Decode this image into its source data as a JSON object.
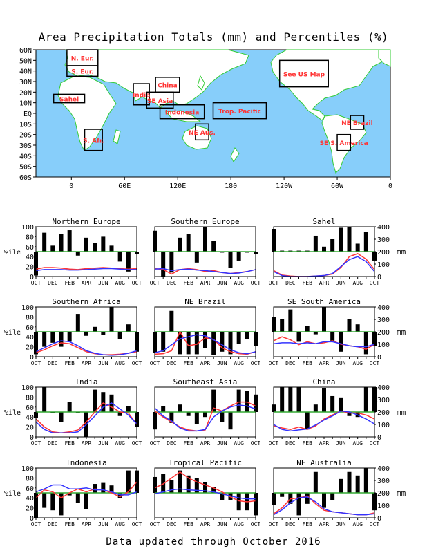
{
  "title": "Area Precipitation Totals (mm) and Percentiles (%)",
  "footer": "Data updated through October 2016",
  "colors": {
    "ocean": "#87cefa",
    "land": "#ffffff",
    "coast": "#33cc33",
    "box": "#000000",
    "region_label": "#ff3333",
    "bars": "#000000",
    "percentile_line": "#ff3333",
    "mm_line": "#3333ff",
    "median_line": "#33aa33"
  },
  "map": {
    "lat_labels": [
      "60N",
      "50N",
      "40N",
      "30N",
      "20N",
      "10N",
      "EQ",
      "10S",
      "20S",
      "30S",
      "40S",
      "50S",
      "60S"
    ],
    "lon_labels": [
      "0",
      "60E",
      "120E",
      "180",
      "120W",
      "60W",
      "0"
    ],
    "regions": [
      {
        "label": "N. Eur.",
        "lon": [
          -5,
          30
        ],
        "lat": [
          45,
          60
        ]
      },
      {
        "label": "S. Eur.",
        "lon": [
          -5,
          30
        ],
        "lat": [
          35,
          45
        ]
      },
      {
        "label": "Sahel",
        "lon": [
          -20,
          15
        ],
        "lat": [
          10,
          18
        ]
      },
      {
        "label": "India",
        "lon": [
          70,
          88
        ],
        "lat": [
          8,
          28
        ]
      },
      {
        "label": "China",
        "lon": [
          95,
          122
        ],
        "lat": [
          20,
          34
        ]
      },
      {
        "label": "SE Asia",
        "lon": [
          85,
          115
        ],
        "lat": [
          5,
          20
        ]
      },
      {
        "label": "Indonesia",
        "lon": [
          100,
          150
        ],
        "lat": [
          -5,
          8
        ]
      },
      {
        "label": "Trop. Pacific",
        "lon": [
          160,
          220
        ],
        "lat": [
          -5,
          10
        ]
      },
      {
        "label": "NE Aus.",
        "lon": [
          140,
          155
        ],
        "lat": [
          -25,
          -10
        ]
      },
      {
        "label": "See US Map",
        "lon": [
          235,
          290
        ],
        "lat": [
          25,
          50
        ]
      },
      {
        "label": "NE Brazil",
        "lon": [
          315,
          330
        ],
        "lat": [
          -15,
          -2
        ]
      },
      {
        "label": "SE S. America",
        "lon": [
          300,
          315
        ],
        "lat": [
          -35,
          -20
        ]
      },
      {
        "label": "S. Afr.",
        "lon": [
          15,
          35
        ],
        "lat": [
          -35,
          -15
        ]
      }
    ]
  },
  "chart_data": [
    {
      "type": "bar",
      "title": "Northern Europe",
      "months": [
        "OCT",
        "NOV",
        "DEC",
        "JAN",
        "FEB",
        "MAR",
        "APR",
        "MAY",
        "JUN",
        "JUL",
        "AUG",
        "SEP",
        "OCT"
      ],
      "month_ticks": [
        "OCT",
        "DEC",
        "FEB",
        "APR",
        "JUN",
        "AUG",
        "OCT"
      ],
      "ylabel": "%ile",
      "ylim": [
        0,
        100
      ],
      "y2lim": [
        0,
        400
      ],
      "bars_percentile": [
        2,
        88,
        62,
        85,
        93,
        42,
        78,
        68,
        80,
        62,
        30,
        10,
        45
      ],
      "series": [
        {
          "values": [
            15,
            18,
            18,
            17,
            15,
            14,
            16,
            17,
            18,
            17,
            16,
            15,
            16
          ]
        },
        {
          "values": [
            12,
            14,
            14,
            14,
            13,
            13,
            14,
            15,
            16,
            16,
            15,
            14,
            14
          ]
        }
      ]
    },
    {
      "type": "bar",
      "title": "Southern Europe",
      "months": [
        "OCT",
        "NOV",
        "DEC",
        "JAN",
        "FEB",
        "MAR",
        "APR",
        "MAY",
        "JUN",
        "JUL",
        "AUG",
        "SEP",
        "OCT"
      ],
      "month_ticks": [
        "OCT",
        "DEC",
        "FEB",
        "APR",
        "JUN",
        "AUG",
        "OCT"
      ],
      "ylabel": "%ile",
      "ylim": [
        0,
        100
      ],
      "y2lim": [
        0,
        400
      ],
      "bars_percentile": [
        92,
        0,
        8,
        78,
        85,
        28,
        100,
        72,
        48,
        18,
        32,
        48,
        45
      ],
      "series": [
        {
          "values": [
            16,
            14,
            5,
            14,
            16,
            14,
            10,
            12,
            8,
            6,
            8,
            10,
            14
          ]
        },
        {
          "values": [
            15,
            16,
            12,
            14,
            15,
            13,
            12,
            10,
            8,
            6,
            7,
            10,
            14
          ]
        }
      ]
    },
    {
      "type": "bar",
      "title": "Sahel",
      "months": [
        "OCT",
        "NOV",
        "DEC",
        "JAN",
        "FEB",
        "MAR",
        "APR",
        "MAY",
        "JUN",
        "JUL",
        "AUG",
        "SEP",
        "OCT"
      ],
      "month_ticks": [
        "OCT",
        "DEC",
        "FEB",
        "APR",
        "JUN",
        "AUG",
        "OCT"
      ],
      "ylabel": "",
      "ylim": [
        0,
        100
      ],
      "y2lim": [
        0,
        400
      ],
      "y2label": "mm",
      "bars_percentile": [
        95,
        52,
        52,
        52,
        52,
        82,
        60,
        75,
        98,
        100,
        66,
        90,
        32
      ],
      "series": [
        {
          "values": [
            12,
            3,
            1,
            0,
            0,
            1,
            2,
            5,
            18,
            40,
            46,
            35,
            14
          ]
        },
        {
          "values": [
            10,
            2,
            0,
            0,
            0,
            1,
            2,
            6,
            20,
            34,
            40,
            30,
            10
          ]
        }
      ]
    },
    {
      "type": "bar",
      "title": "Southern Africa",
      "months": [
        "OCT",
        "NOV",
        "DEC",
        "JAN",
        "FEB",
        "MAR",
        "APR",
        "MAY",
        "JUN",
        "JUL",
        "AUG",
        "SEP",
        "OCT"
      ],
      "month_ticks": [
        "OCT",
        "DEC",
        "FEB",
        "APR",
        "JUN",
        "AUG",
        "OCT"
      ],
      "ylabel": "%ile",
      "ylim": [
        0,
        100
      ],
      "y2lim": [
        0,
        400
      ],
      "bars_percentile": [
        5,
        20,
        28,
        20,
        30,
        86,
        42,
        60,
        44,
        100,
        35,
        65,
        10
      ],
      "series": [
        {
          "values": [
            8,
            14,
            22,
            28,
            26,
            18,
            10,
            6,
            4,
            4,
            5,
            7,
            10
          ]
        },
        {
          "values": [
            10,
            18,
            26,
            32,
            30,
            22,
            12,
            7,
            4,
            3,
            4,
            7,
            12
          ]
        }
      ]
    },
    {
      "type": "bar",
      "title": "NE Brazil",
      "months": [
        "OCT",
        "NOV",
        "DEC",
        "JAN",
        "FEB",
        "MAR",
        "APR",
        "MAY",
        "JUN",
        "JUL",
        "AUG",
        "SEP",
        "OCT"
      ],
      "month_ticks": [
        "OCT",
        "DEC",
        "FEB",
        "APR",
        "JUN",
        "AUG",
        "OCT"
      ],
      "ylabel": "",
      "ylim": [
        0,
        100
      ],
      "y2lim": [
        0,
        400
      ],
      "bars_percentile": [
        8,
        10,
        92,
        5,
        5,
        5,
        18,
        3,
        10,
        5,
        25,
        35,
        22
      ],
      "series": [
        {
          "values": [
            5,
            6,
            12,
            50,
            22,
            25,
            38,
            35,
            18,
            10,
            6,
            5,
            10
          ]
        },
        {
          "values": [
            8,
            12,
            24,
            36,
            40,
            44,
            42,
            34,
            24,
            14,
            8,
            6,
            10
          ]
        }
      ]
    },
    {
      "type": "bar",
      "title": "SE South America",
      "months": [
        "OCT",
        "NOV",
        "DEC",
        "JAN",
        "FEB",
        "MAR",
        "APR",
        "MAY",
        "JUN",
        "JUL",
        "AUG",
        "SEP",
        "OCT"
      ],
      "month_ticks": [
        "OCT",
        "DEC",
        "FEB",
        "APR",
        "JUN",
        "AUG",
        "OCT"
      ],
      "ylabel": "",
      "ylim": [
        0,
        100
      ],
      "y2lim": [
        0,
        400
      ],
      "y2label": "mm",
      "bars_percentile": [
        80,
        75,
        95,
        30,
        62,
        45,
        100,
        32,
        10,
        75,
        65,
        5,
        22
      ],
      "series": [
        {
          "values": [
            32,
            40,
            34,
            24,
            30,
            26,
            28,
            32,
            25,
            22,
            20,
            15,
            25
          ]
        },
        {
          "values": [
            26,
            28,
            28,
            26,
            28,
            26,
            30,
            30,
            26,
            22,
            20,
            20,
            25
          ]
        }
      ]
    },
    {
      "type": "bar",
      "title": "India",
      "months": [
        "OCT",
        "NOV",
        "DEC",
        "JAN",
        "FEB",
        "MAR",
        "APR",
        "MAY",
        "JUN",
        "JUL",
        "AUG",
        "SEP",
        "OCT"
      ],
      "month_ticks": [
        "OCT",
        "DEC",
        "FEB",
        "APR",
        "JUN",
        "AUG",
        "OCT"
      ],
      "ylabel": "%ile",
      "ylim": [
        0,
        100
      ],
      "y2lim": [
        0,
        400
      ],
      "bars_percentile": [
        38,
        100,
        50,
        30,
        70,
        50,
        0,
        95,
        90,
        85,
        42,
        62,
        20
      ],
      "series": [
        {
          "values": [
            36,
            20,
            10,
            8,
            10,
            14,
            30,
            50,
            68,
            60,
            50,
            48,
            25
          ]
        },
        {
          "values": [
            30,
            15,
            8,
            8,
            8,
            10,
            25,
            42,
            60,
            68,
            56,
            44,
            26
          ]
        }
      ]
    },
    {
      "type": "bar",
      "title": "Southeast Asia",
      "months": [
        "OCT",
        "NOV",
        "DEC",
        "JAN",
        "FEB",
        "MAR",
        "APR",
        "MAY",
        "JUN",
        "JUL",
        "AUG",
        "SEP",
        "OCT"
      ],
      "month_ticks": [
        "OCT",
        "DEC",
        "FEB",
        "APR",
        "JUN",
        "AUG",
        "OCT"
      ],
      "ylabel": "",
      "ylim": [
        0,
        100
      ],
      "y2lim": [
        0,
        400
      ],
      "bars_percentile": [
        15,
        62,
        28,
        65,
        42,
        25,
        40,
        95,
        30,
        15,
        95,
        92,
        85
      ],
      "series": [
        {
          "values": [
            52,
            40,
            30,
            20,
            14,
            12,
            14,
            58,
            52,
            62,
            70,
            70,
            62
          ]
        },
        {
          "values": [
            58,
            42,
            32,
            18,
            12,
            12,
            15,
            40,
            52,
            60,
            64,
            62,
            56
          ]
        }
      ]
    },
    {
      "type": "bar",
      "title": "China",
      "months": [
        "OCT",
        "NOV",
        "DEC",
        "JAN",
        "FEB",
        "MAR",
        "APR",
        "MAY",
        "JUN",
        "JUL",
        "AUG",
        "SEP",
        "OCT"
      ],
      "month_ticks": [
        "OCT",
        "DEC",
        "FEB",
        "APR",
        "JUN",
        "AUG",
        "OCT"
      ],
      "ylabel": "",
      "ylim": [
        0,
        100
      ],
      "y2lim": [
        0,
        400
      ],
      "y2label": "mm",
      "bars_percentile": [
        65,
        100,
        100,
        100,
        15,
        65,
        98,
        82,
        78,
        42,
        40,
        100,
        100
      ],
      "series": [
        {
          "values": [
            22,
            18,
            15,
            20,
            15,
            22,
            36,
            44,
            52,
            48,
            48,
            44,
            36
          ]
        },
        {
          "values": [
            25,
            15,
            12,
            14,
            16,
            24,
            34,
            42,
            52,
            50,
            44,
            36,
            26
          ]
        }
      ]
    },
    {
      "type": "bar",
      "title": "Indonesia",
      "months": [
        "OCT",
        "NOV",
        "DEC",
        "JAN",
        "FEB",
        "MAR",
        "APR",
        "MAY",
        "JUN",
        "JUL",
        "AUG",
        "SEP",
        "OCT"
      ],
      "month_ticks": [
        "OCT",
        "DEC",
        "FEB",
        "APR",
        "JUN",
        "AUG",
        "OCT"
      ],
      "ylabel": "%ile",
      "ylim": [
        0,
        100
      ],
      "y2lim": [
        0,
        400
      ],
      "bars_percentile": [
        0,
        20,
        15,
        5,
        45,
        30,
        18,
        68,
        70,
        65,
        40,
        95,
        95
      ],
      "series": [
        {
          "values": [
            40,
            56,
            52,
            40,
            50,
            58,
            52,
            58,
            56,
            50,
            42,
            52,
            72
          ]
        },
        {
          "values": [
            52,
            58,
            66,
            66,
            58,
            58,
            60,
            56,
            56,
            52,
            46,
            46,
            52
          ]
        }
      ]
    },
    {
      "type": "bar",
      "title": "Tropical Pacific",
      "months": [
        "OCT",
        "NOV",
        "DEC",
        "JAN",
        "FEB",
        "MAR",
        "APR",
        "MAY",
        "JUN",
        "JUL",
        "AUG",
        "SEP",
        "OCT"
      ],
      "month_ticks": [
        "OCT",
        "DEC",
        "FEB",
        "APR",
        "JUN",
        "AUG",
        "OCT"
      ],
      "ylabel": "",
      "ylim": [
        0,
        100
      ],
      "y2lim": [
        0,
        400
      ],
      "bars_percentile": [
        82,
        88,
        75,
        95,
        85,
        80,
        72,
        62,
        35,
        35,
        15,
        15,
        5
      ],
      "series": [
        {
          "values": [
            60,
            68,
            80,
            92,
            80,
            72,
            66,
            60,
            52,
            42,
            34,
            32,
            34
          ]
        },
        {
          "values": [
            48,
            52,
            56,
            58,
            56,
            55,
            54,
            52,
            48,
            44,
            40,
            38,
            38
          ]
        }
      ]
    },
    {
      "type": "bar",
      "title": "NE Australia",
      "months": [
        "OCT",
        "NOV",
        "DEC",
        "JAN",
        "FEB",
        "MAR",
        "APR",
        "MAY",
        "JUN",
        "JUL",
        "AUG",
        "SEP",
        "OCT"
      ],
      "month_ticks": [
        "OCT",
        "DEC",
        "FEB",
        "APR",
        "JUN",
        "AUG",
        "OCT"
      ],
      "ylabel": "",
      "ylim": [
        0,
        100
      ],
      "y2lim": [
        0,
        400
      ],
      "y2label": "mm",
      "bars_percentile": [
        25,
        42,
        28,
        5,
        28,
        92,
        20,
        35,
        78,
        92,
        85,
        100,
        15
      ],
      "series": [
        {
          "values": [
            8,
            20,
            38,
            40,
            44,
            28,
            15,
            12,
            10,
            8,
            6,
            6,
            10
          ]
        },
        {
          "values": [
            6,
            16,
            30,
            40,
            42,
            32,
            18,
            12,
            10,
            8,
            6,
            6,
            8
          ]
        }
      ]
    }
  ]
}
